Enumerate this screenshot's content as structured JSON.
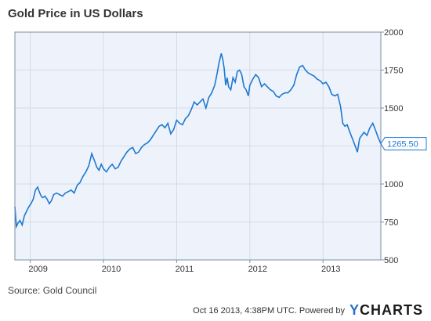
{
  "title": "Gold Price in US Dollars",
  "source": "Source: Gold Council",
  "footer": {
    "timestamp": "Oct 16 2013, 4:38PM UTC.",
    "powered_by": "Powered by",
    "brand_prefix": "Y",
    "brand_suffix": "CHARTS"
  },
  "colors": {
    "line": "#1f78d1",
    "plot_bg": "#eef3fb",
    "border": "#7f8fa6"
  },
  "chart_data": {
    "type": "line",
    "title": "Gold Price in US Dollars",
    "xlabel": "",
    "ylabel": "",
    "xlim": [
      2008.79,
      2013.79
    ],
    "ylim": [
      500,
      2000
    ],
    "y_ticks": [
      500,
      750,
      1000,
      1250,
      1500,
      1750,
      2000
    ],
    "x_ticks": [
      {
        "label": "2009",
        "x": 2009.0
      },
      {
        "label": "2010",
        "x": 2010.0
      },
      {
        "label": "2011",
        "x": 2011.0
      },
      {
        "label": "2012",
        "x": 2012.0
      },
      {
        "label": "2013",
        "x": 2013.0
      }
    ],
    "grid": true,
    "last_value_label": "1265.50",
    "series": [
      {
        "name": "",
        "x": [
          2008.79,
          2008.81,
          2008.83,
          2008.86,
          2008.89,
          2008.92,
          2008.95,
          2008.98,
          2009.01,
          2009.04,
          2009.07,
          2009.1,
          2009.13,
          2009.15,
          2009.17,
          2009.2,
          2009.23,
          2009.26,
          2009.29,
          2009.32,
          2009.36,
          2009.4,
          2009.44,
          2009.48,
          2009.52,
          2009.56,
          2009.6,
          2009.64,
          2009.68,
          2009.72,
          2009.76,
          2009.8,
          2009.84,
          2009.88,
          2009.91,
          2009.94,
          2009.97,
          2010.0,
          2010.04,
          2010.08,
          2010.12,
          2010.16,
          2010.2,
          2010.24,
          2010.28,
          2010.32,
          2010.36,
          2010.4,
          2010.44,
          2010.48,
          2010.52,
          2010.56,
          2010.6,
          2010.64,
          2010.68,
          2010.72,
          2010.76,
          2010.8,
          2010.84,
          2010.88,
          2010.92,
          2010.96,
          2011.0,
          2011.04,
          2011.08,
          2011.12,
          2011.16,
          2011.2,
          2011.24,
          2011.28,
          2011.32,
          2011.36,
          2011.4,
          2011.44,
          2011.48,
          2011.52,
          2011.55,
          2011.58,
          2011.61,
          2011.63,
          2011.65,
          2011.67,
          2011.69,
          2011.71,
          2011.74,
          2011.77,
          2011.8,
          2011.83,
          2011.86,
          2011.89,
          2011.92,
          2011.95,
          2011.98,
          2012.0,
          2012.04,
          2012.08,
          2012.12,
          2012.16,
          2012.2,
          2012.24,
          2012.28,
          2012.32,
          2012.36,
          2012.4,
          2012.44,
          2012.48,
          2012.52,
          2012.56,
          2012.6,
          2012.64,
          2012.68,
          2012.72,
          2012.76,
          2012.8,
          2012.84,
          2012.88,
          2012.92,
          2012.96,
          2013.0,
          2013.04,
          2013.08,
          2013.12,
          2013.16,
          2013.2,
          2013.24,
          2013.27,
          2013.3,
          2013.33,
          2013.36,
          2013.4,
          2013.44,
          2013.47,
          2013.5,
          2013.53,
          2013.56,
          2013.6,
          2013.64,
          2013.68,
          2013.72,
          2013.75,
          2013.79
        ],
        "values": [
          850,
          720,
          740,
          760,
          730,
          790,
          820,
          850,
          870,
          900,
          960,
          980,
          940,
          920,
          910,
          920,
          900,
          870,
          890,
          930,
          940,
          930,
          920,
          940,
          950,
          960,
          940,
          990,
          1010,
          1050,
          1080,
          1120,
          1200,
          1150,
          1110,
          1090,
          1130,
          1100,
          1080,
          1110,
          1130,
          1100,
          1110,
          1150,
          1180,
          1210,
          1230,
          1240,
          1200,
          1210,
          1240,
          1260,
          1270,
          1290,
          1320,
          1350,
          1380,
          1390,
          1370,
          1400,
          1330,
          1360,
          1420,
          1400,
          1390,
          1430,
          1450,
          1490,
          1540,
          1520,
          1540,
          1560,
          1500,
          1570,
          1600,
          1650,
          1720,
          1800,
          1860,
          1820,
          1760,
          1650,
          1700,
          1640,
          1620,
          1700,
          1670,
          1740,
          1750,
          1720,
          1640,
          1620,
          1580,
          1650,
          1690,
          1720,
          1700,
          1640,
          1660,
          1640,
          1620,
          1610,
          1580,
          1570,
          1590,
          1600,
          1600,
          1620,
          1650,
          1720,
          1770,
          1780,
          1750,
          1730,
          1720,
          1710,
          1690,
          1680,
          1660,
          1670,
          1640,
          1590,
          1580,
          1590,
          1510,
          1400,
          1380,
          1390,
          1350,
          1300,
          1250,
          1210,
          1300,
          1320,
          1340,
          1320,
          1370,
          1400,
          1350,
          1310,
          1265
        ]
      }
    ]
  }
}
